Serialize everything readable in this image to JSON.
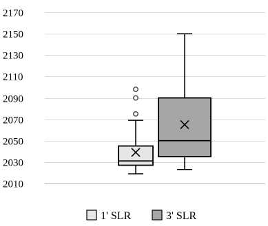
{
  "chart_data": {
    "type": "boxplot",
    "title": "",
    "xlabel": "",
    "ylabel": "",
    "ylim": [
      2010,
      2170
    ],
    "yticks": [
      2010,
      2030,
      2050,
      2070,
      2090,
      2110,
      2130,
      2150,
      2170
    ],
    "grid": true,
    "legend_position": "bottom",
    "series": [
      {
        "name": "1' SLR",
        "color": "#e6e6e6",
        "whisker_low": 2019,
        "q1": 2027,
        "median": 2031,
        "q3": 2045,
        "whisker_high": 2069,
        "mean": 2039,
        "outliers": [
          2075,
          2090,
          2098
        ]
      },
      {
        "name": "3' SLR",
        "color": "#a6a6a6",
        "whisker_low": 2023,
        "q1": 2035,
        "median": 2050,
        "q3": 2090,
        "whisker_high": 2150,
        "mean": 2065,
        "outliers": []
      }
    ]
  }
}
